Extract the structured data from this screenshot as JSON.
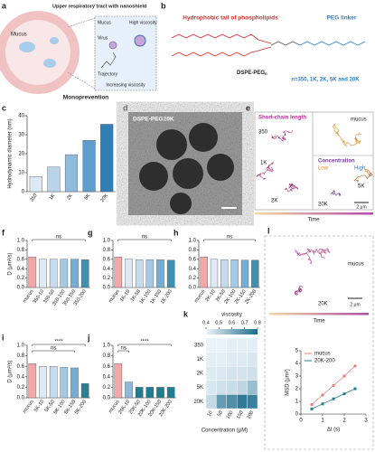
{
  "panel_a": {
    "letter": "a",
    "title": "Upper respiratory tract with nanoshield",
    "mucus_left": "Mucus",
    "mucus": "Mucus",
    "virus": "Virus",
    "high_viscosity": "High viscosity",
    "trajectory": "Trajectory",
    "increasing": "Increasing viscosity",
    "footer": "Monoprevention"
  },
  "panel_b": {
    "letter": "b",
    "tail": "Hydrophobic tail of phospholipids",
    "peg": "PEG linker",
    "name": "DSPE-PEG",
    "name_sub": "n",
    "n_values": "n=350, 1K, 2K, 5K and 20K"
  },
  "panel_d": {
    "letter": "d",
    "label": "DSPE-PEG20K"
  },
  "panel_e": {
    "letter": "e",
    "short_chain": "Short-chain length",
    "short_labels": [
      "350",
      "1K",
      "2K"
    ],
    "mucus": "mucus",
    "concentration": "Concentration",
    "low": "Low",
    "high": "High",
    "conc_labels": [
      "5K",
      "20K"
    ],
    "scale": "2 μm",
    "time": "Time"
  },
  "panel_l": {
    "letter": "l",
    "mucus": "mucus",
    "label": "20K",
    "scale": "2 μm",
    "time": "Time"
  },
  "chart_data": [
    {
      "panel": "c",
      "type": "bar",
      "y_label": "Hydrodynamic diameter (nm)",
      "categories": [
        "350",
        "1K",
        "2K",
        "5K",
        "20K"
      ],
      "values": [
        8,
        13,
        19.5,
        27,
        35.5
      ],
      "colors": [
        "#dce8f4",
        "#b9d3ea",
        "#8fbbdd",
        "#5e9ecd",
        "#2f7fb5"
      ],
      "ylim": [
        0,
        40
      ],
      "yticks": [
        0,
        10,
        20,
        30,
        40
      ]
    },
    {
      "panel": "f",
      "type": "bar",
      "y_label": "D (μm²/s)",
      "categories": [
        "mucus",
        "350-10",
        "350-50",
        "350-100",
        "350-150",
        "350-200"
      ],
      "values": [
        0.65,
        0.6,
        0.6,
        0.6,
        0.6,
        0.59
      ],
      "colors": [
        "#f2a8a8",
        "#dfe9f4",
        "#c6dbee",
        "#a5c8e4",
        "#75aed4",
        "#3f90b0"
      ],
      "ylim": [
        0,
        1
      ],
      "yticks": [
        {
          "value": 0,
          "label": "0.0"
        },
        0.2,
        0.4,
        0.6,
        0.8,
        {
          "value": 1,
          "label": "1.0"
        }
      ],
      "annotations": [
        "ns"
      ]
    },
    {
      "panel": "g",
      "type": "bar",
      "categories": [
        "mucus",
        "1K-10",
        "1K-50",
        "1K-100",
        "1K-150",
        "1K-200"
      ],
      "values": [
        0.65,
        0.6,
        0.59,
        0.59,
        0.59,
        0.58
      ],
      "colors": [
        "#f2a8a8",
        "#dfe9f4",
        "#c6dbee",
        "#a5c8e4",
        "#75aed4",
        "#3f90b0"
      ],
      "ylim": [
        0,
        1
      ],
      "yticks": [
        {
          "value": 0,
          "label": "0.0"
        },
        0.2,
        0.4,
        0.6,
        0.8,
        {
          "value": 1,
          "label": "1.0"
        }
      ],
      "annotations": [
        "ns"
      ]
    },
    {
      "panel": "h",
      "type": "bar",
      "categories": [
        "mucus",
        "2K-10",
        "2K-50",
        "2K-100",
        "2K-150",
        "2K-200"
      ],
      "values": [
        0.65,
        0.6,
        0.59,
        0.59,
        0.58,
        0.58
      ],
      "colors": [
        "#f2a8a8",
        "#dfe9f4",
        "#c6dbee",
        "#a5c8e4",
        "#75aed4",
        "#3f90b0"
      ],
      "ylim": [
        0,
        1
      ],
      "yticks": [
        {
          "value": 0,
          "label": "0.0"
        },
        0.2,
        0.4,
        0.6,
        0.8,
        {
          "value": 1,
          "label": "1.0"
        }
      ],
      "annotations": [
        "ns"
      ]
    },
    {
      "panel": "i",
      "type": "bar",
      "y_label": "D (μm²/s)",
      "categories": [
        "mucus",
        "5K-10",
        "5K-50",
        "5K-100",
        "5K-150",
        "5K-200"
      ],
      "values": [
        0.65,
        0.6,
        0.6,
        0.58,
        0.57,
        0.27
      ],
      "colors": [
        "#f2a8a8",
        "#dfe9f4",
        "#c6dbee",
        "#a5c8e4",
        "#75aed4",
        "#2a7f93"
      ],
      "ylim": [
        0,
        1
      ],
      "yticks": [
        {
          "value": 0,
          "label": "0.0"
        },
        0.2,
        0.4,
        0.6,
        0.8,
        {
          "value": 1,
          "label": "1.0"
        }
      ],
      "annotations": [
        "ns",
        "****"
      ]
    },
    {
      "panel": "j",
      "type": "bar",
      "categories": [
        "mucus",
        "20K-10",
        "20K-50",
        "20K-100",
        "20K-150",
        "20K-200"
      ],
      "values": [
        0.65,
        0.3,
        0.2,
        0.2,
        0.2,
        0.2
      ],
      "colors": [
        "#f2a8a8",
        "#8fb8dc",
        "#1f7d8f",
        "#1f7d8f",
        "#1f7d8f",
        "#1f7d8f"
      ],
      "ylim": [
        0,
        1
      ],
      "yticks": [
        {
          "value": 0,
          "label": "0.0"
        },
        0.2,
        0.4,
        0.6,
        0.8,
        {
          "value": 1,
          "label": "1.0"
        }
      ],
      "annotations": [
        "ns",
        "****"
      ]
    },
    {
      "panel": "k",
      "type": "heatmap",
      "title": "viscosity",
      "x_label": "Concentration (μM)",
      "categories": [
        "10",
        "50",
        "100",
        "150",
        "200"
      ],
      "rows": [
        "350",
        "1K",
        "2K",
        "5K",
        "20K"
      ],
      "values": [
        [
          0.41,
          0.41,
          0.42,
          0.42,
          0.42
        ],
        [
          0.42,
          0.42,
          0.43,
          0.43,
          0.44
        ],
        [
          0.43,
          0.44,
          0.45,
          0.45,
          0.46
        ],
        [
          0.44,
          0.46,
          0.47,
          0.49,
          0.56
        ],
        [
          0.48,
          0.66,
          0.7,
          0.76,
          0.74
        ]
      ],
      "zlim": [
        0.4,
        0.8
      ],
      "zticks": [
        0.4,
        0.5,
        0.6,
        0.7,
        0.8
      ],
      "low_color": "#eef5fb",
      "high_color": "#1b6b8a"
    },
    {
      "type": "line",
      "x_label": "Δt (s)",
      "y_label": "MSD (μm²)",
      "x": [
        0.5,
        1,
        1.5,
        2,
        2.5
      ],
      "series": [
        {
          "name": "mucus",
          "color": "#e87d7d",
          "values": [
            0.75,
            1.5,
            2.25,
            3,
            3.8
          ]
        },
        {
          "name": "20K-200",
          "color": "#1f7f8f",
          "values": [
            0.4,
            0.8,
            1.2,
            1.6,
            2
          ]
        }
      ],
      "xlim": [
        0,
        3
      ],
      "xticks": [
        0,
        1,
        2,
        3
      ],
      "ylim": [
        0,
        5
      ],
      "yticks": [
        0,
        1,
        2,
        3,
        4,
        5
      ]
    }
  ]
}
